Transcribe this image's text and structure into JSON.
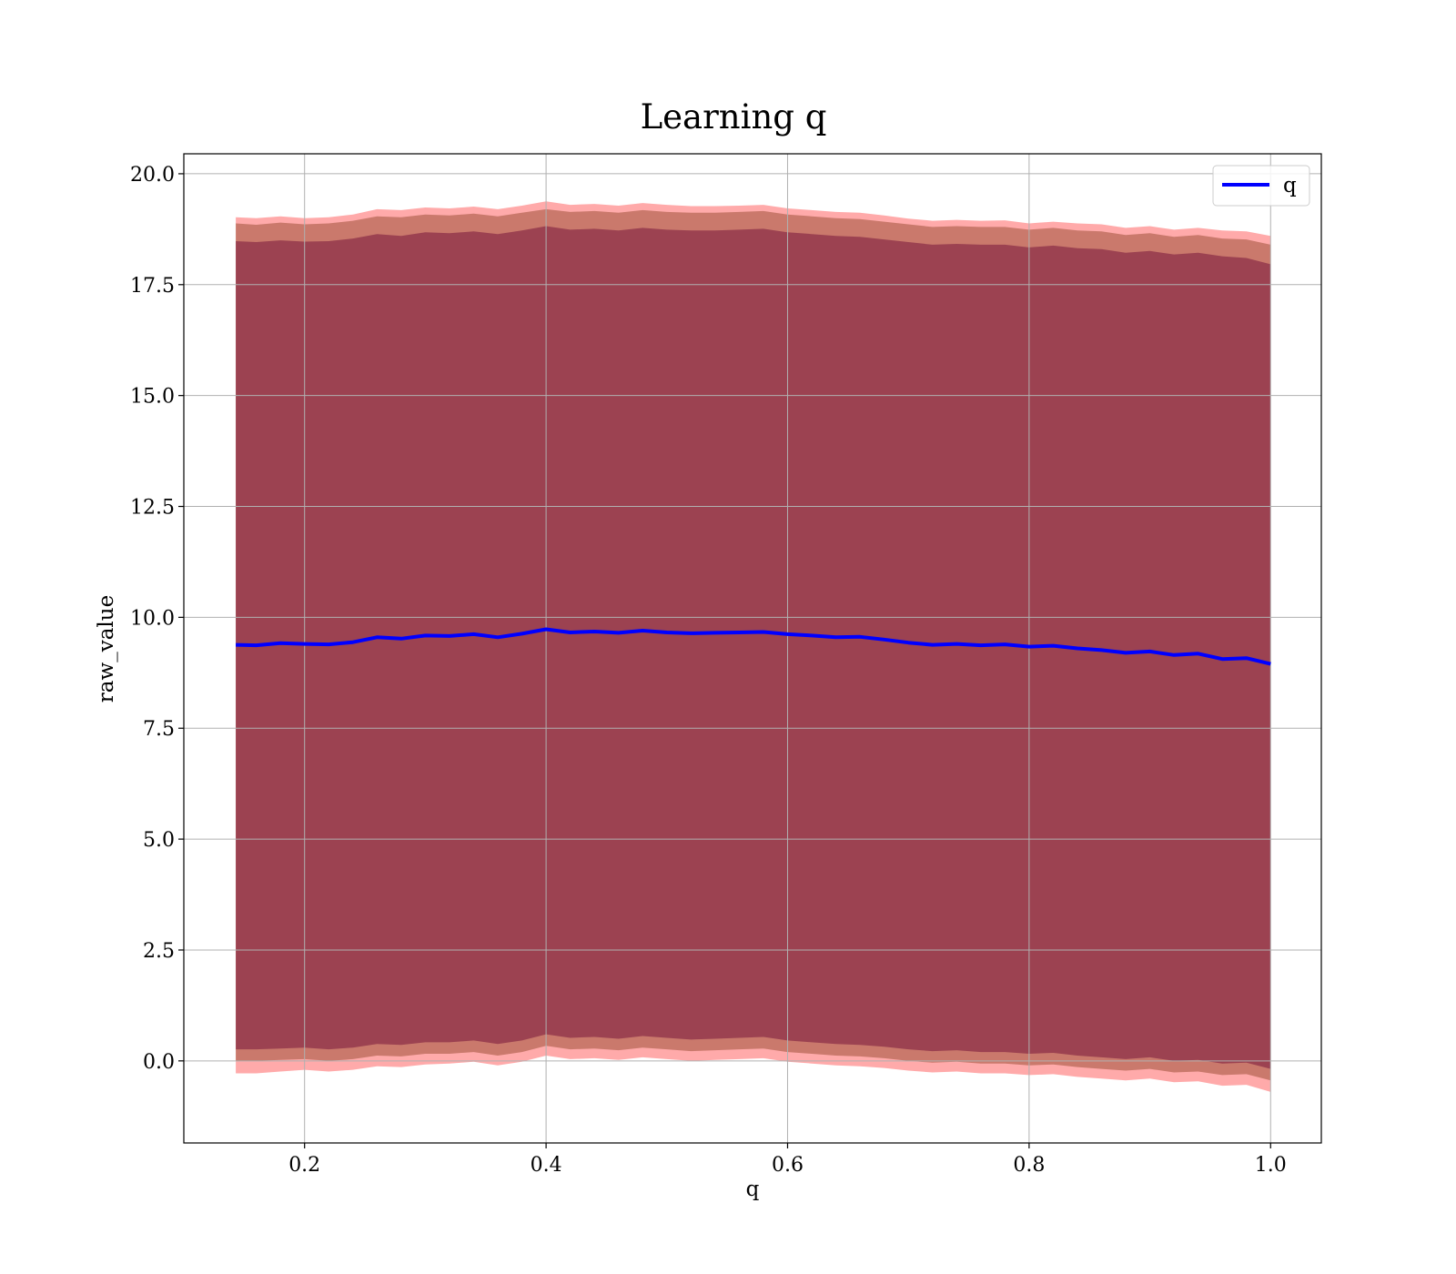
{
  "chart_data": {
    "type": "line",
    "title": "Learning q",
    "xlabel": "q",
    "ylabel": "raw_value",
    "xlim": [
      0.1,
      1.042
    ],
    "ylim": [
      -1.85,
      20.45
    ],
    "x_ticks": [
      0.2,
      0.4,
      0.6,
      0.8,
      1.0
    ],
    "x_tick_labels": [
      "0.2",
      "0.4",
      "0.6",
      "0.8",
      "1.0"
    ],
    "y_ticks": [
      0.0,
      2.5,
      5.0,
      7.5,
      10.0,
      12.5,
      15.0,
      17.5,
      20.0
    ],
    "y_tick_labels": [
      "0.0",
      "2.5",
      "5.0",
      "7.5",
      "10.0",
      "12.5",
      "15.0",
      "17.5",
      "20.0"
    ],
    "grid": true,
    "legend": {
      "position": "top-right",
      "entries": [
        "q"
      ]
    },
    "x": [
      0.143,
      0.16,
      0.18,
      0.2,
      0.22,
      0.24,
      0.26,
      0.28,
      0.3,
      0.32,
      0.34,
      0.36,
      0.38,
      0.4,
      0.42,
      0.44,
      0.46,
      0.48,
      0.5,
      0.52,
      0.54,
      0.56,
      0.58,
      0.6,
      0.62,
      0.64,
      0.66,
      0.68,
      0.7,
      0.72,
      0.74,
      0.76,
      0.78,
      0.8,
      0.82,
      0.84,
      0.86,
      0.88,
      0.9,
      0.92,
      0.94,
      0.96,
      0.98,
      1.0
    ],
    "series": [
      {
        "name": "q",
        "color": "#0000ff",
        "values": [
          9.38,
          9.37,
          9.42,
          9.4,
          9.39,
          9.44,
          9.55,
          9.52,
          9.59,
          9.58,
          9.62,
          9.55,
          9.63,
          9.73,
          9.66,
          9.68,
          9.65,
          9.7,
          9.66,
          9.64,
          9.65,
          9.66,
          9.67,
          9.62,
          9.59,
          9.55,
          9.56,
          9.5,
          9.43,
          9.38,
          9.4,
          9.37,
          9.39,
          9.34,
          9.36,
          9.3,
          9.26,
          9.2,
          9.23,
          9.15,
          9.18,
          9.06,
          9.08,
          8.95
        ]
      }
    ],
    "bands": [
      {
        "color": "#ff6464",
        "opacity": 0.55,
        "upper": [
          19.02,
          19.0,
          19.04,
          19.0,
          19.02,
          19.08,
          19.2,
          19.18,
          19.24,
          19.22,
          19.26,
          19.2,
          19.28,
          19.38,
          19.3,
          19.32,
          19.28,
          19.34,
          19.3,
          19.27,
          19.27,
          19.28,
          19.3,
          19.22,
          19.18,
          19.14,
          19.12,
          19.06,
          18.99,
          18.94,
          18.96,
          18.94,
          18.95,
          18.88,
          18.92,
          18.88,
          18.86,
          18.78,
          18.82,
          18.74,
          18.78,
          18.72,
          18.7,
          18.6
        ],
        "lower": [
          -0.28,
          -0.28,
          -0.24,
          -0.2,
          -0.24,
          -0.2,
          -0.12,
          -0.14,
          -0.08,
          -0.06,
          -0.02,
          -0.1,
          -0.02,
          0.12,
          0.04,
          0.06,
          0.02,
          0.08,
          0.04,
          0.0,
          0.02,
          0.04,
          0.06,
          -0.02,
          -0.06,
          -0.1,
          -0.12,
          -0.16,
          -0.22,
          -0.26,
          -0.24,
          -0.28,
          -0.28,
          -0.32,
          -0.3,
          -0.36,
          -0.4,
          -0.44,
          -0.4,
          -0.48,
          -0.46,
          -0.56,
          -0.54,
          -0.7
        ]
      },
      {
        "color": "#7a3010",
        "opacity": 0.4,
        "upper": [
          18.88,
          18.85,
          18.9,
          18.86,
          18.88,
          18.94,
          19.04,
          19.02,
          19.08,
          19.06,
          19.1,
          19.04,
          19.12,
          19.2,
          19.14,
          19.16,
          19.12,
          19.18,
          19.14,
          19.12,
          19.12,
          19.14,
          19.16,
          19.08,
          19.04,
          19.0,
          18.98,
          18.92,
          18.86,
          18.8,
          18.82,
          18.8,
          18.8,
          18.74,
          18.78,
          18.72,
          18.7,
          18.62,
          18.66,
          18.58,
          18.62,
          18.54,
          18.52,
          18.4
        ],
        "lower": [
          0.0,
          0.0,
          0.02,
          0.04,
          0.0,
          0.04,
          0.12,
          0.1,
          0.16,
          0.16,
          0.2,
          0.12,
          0.2,
          0.34,
          0.26,
          0.28,
          0.24,
          0.3,
          0.26,
          0.22,
          0.24,
          0.26,
          0.28,
          0.2,
          0.16,
          0.12,
          0.1,
          0.06,
          0.0,
          -0.04,
          -0.02,
          -0.06,
          -0.06,
          -0.1,
          -0.08,
          -0.14,
          -0.18,
          -0.22,
          -0.18,
          -0.26,
          -0.24,
          -0.32,
          -0.3,
          -0.44
        ]
      },
      {
        "color": "#640030",
        "opacity": 0.45,
        "upper": [
          18.48,
          18.46,
          18.5,
          18.47,
          18.48,
          18.54,
          18.64,
          18.6,
          18.68,
          18.66,
          18.7,
          18.64,
          18.72,
          18.82,
          18.74,
          18.76,
          18.72,
          18.78,
          18.74,
          18.72,
          18.72,
          18.74,
          18.76,
          18.68,
          18.64,
          18.6,
          18.58,
          18.52,
          18.46,
          18.4,
          18.42,
          18.4,
          18.4,
          18.34,
          18.38,
          18.32,
          18.3,
          18.22,
          18.26,
          18.18,
          18.22,
          18.14,
          18.1,
          17.96
        ],
        "lower": [
          0.26,
          0.26,
          0.28,
          0.3,
          0.26,
          0.3,
          0.38,
          0.36,
          0.42,
          0.42,
          0.46,
          0.38,
          0.46,
          0.6,
          0.52,
          0.54,
          0.5,
          0.56,
          0.52,
          0.48,
          0.5,
          0.52,
          0.54,
          0.46,
          0.42,
          0.38,
          0.36,
          0.32,
          0.26,
          0.22,
          0.24,
          0.2,
          0.2,
          0.16,
          0.18,
          0.12,
          0.08,
          0.04,
          0.08,
          0.0,
          0.02,
          -0.06,
          -0.04,
          -0.18
        ]
      }
    ]
  }
}
